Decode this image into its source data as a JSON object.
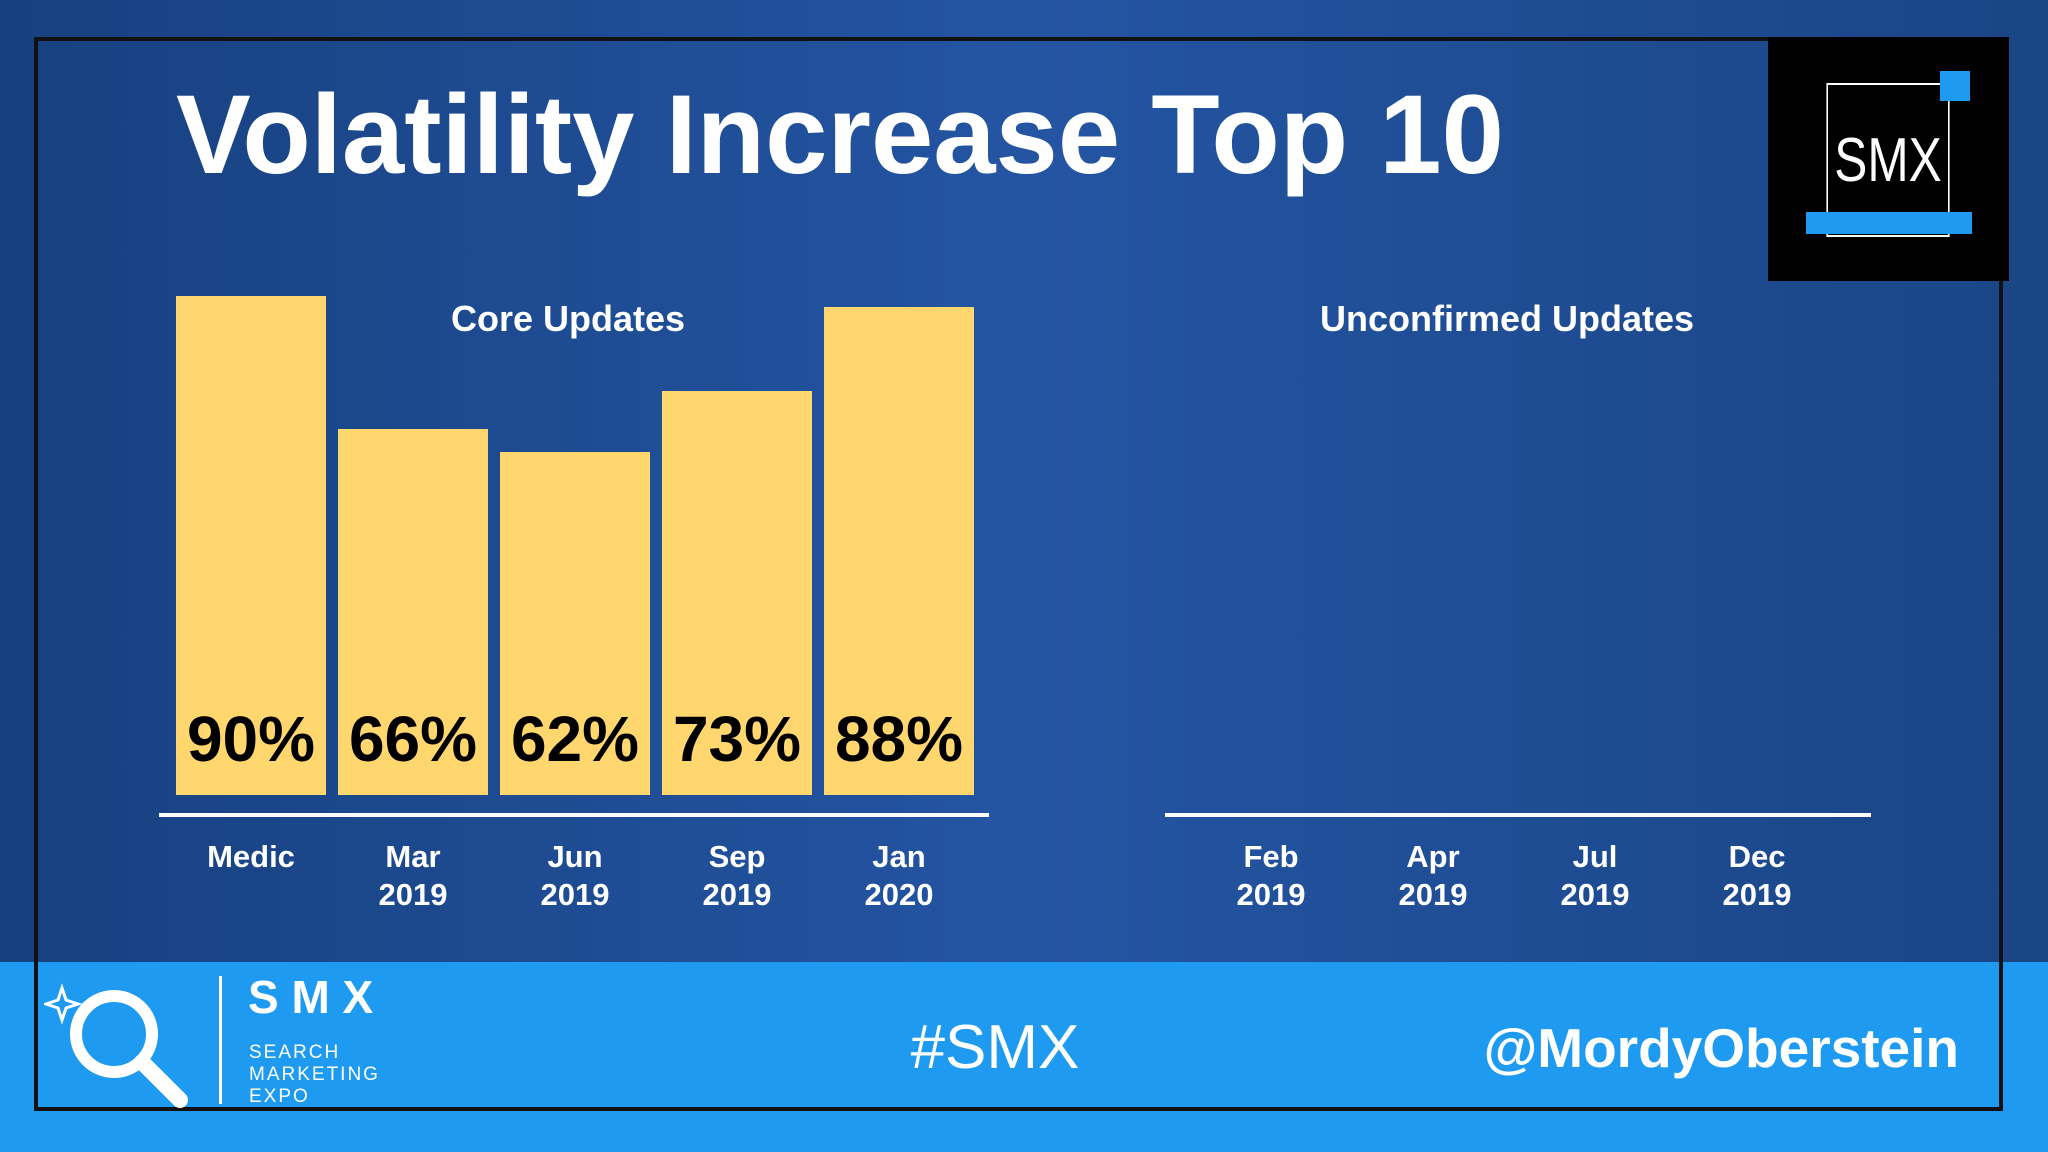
{
  "header": {
    "title": "Volatility Increase Top 10",
    "logo": "SMX"
  },
  "chart_data": [
    {
      "type": "bar",
      "title": "Core Updates",
      "categories": [
        "Medic",
        "Mar 2019",
        "Jun 2019",
        "Sep 2019",
        "Jan 2020"
      ],
      "values": [
        90,
        66,
        62,
        73,
        88
      ],
      "value_labels": [
        "90%",
        "66%",
        "62%",
        "73%",
        "88%"
      ],
      "color": "#ffd76e"
    },
    {
      "type": "bar",
      "title": "Unconfirmed Updates",
      "categories": [
        "Feb 2019",
        "Apr 2019",
        "Jul 2019",
        "Dec 2019"
      ],
      "color": "#ffd76e"
    }
  ],
  "footer": {
    "brand": "S M X",
    "tagline": [
      "SEARCH",
      "MARKETING",
      "EXPO"
    ],
    "hashtag": "#SMX",
    "handle": "@MordyOberstein"
  }
}
